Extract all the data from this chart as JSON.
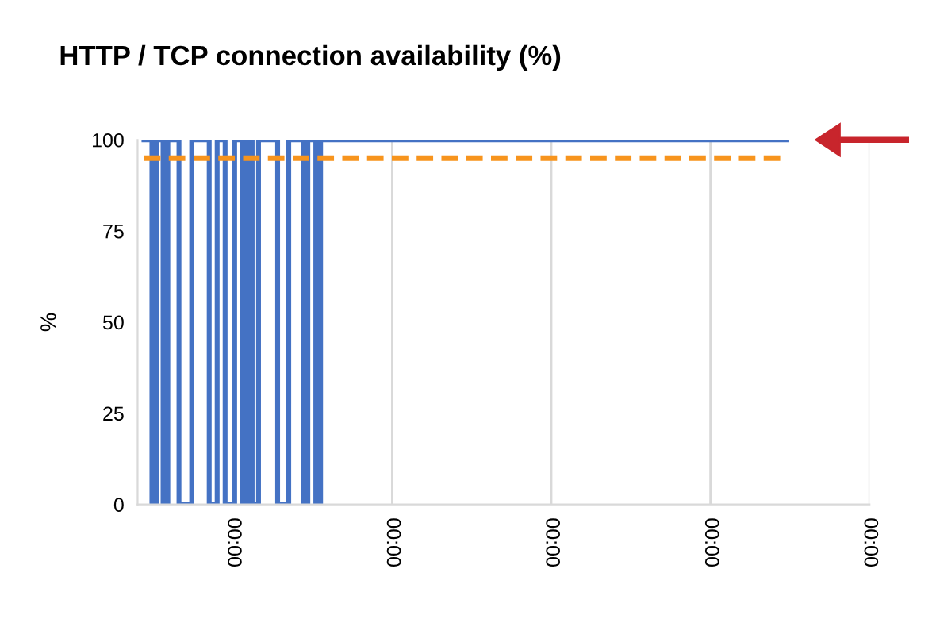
{
  "chart_data": {
    "type": "line",
    "title": "HTTP / TCP connection availability (%)",
    "ylabel": "%",
    "series": [
      {
        "color": "#4472c4",
        "x": [
          0.44,
          0.49,
          0.49,
          0.52,
          0.52,
          0.56,
          0.56,
          0.59,
          0.59,
          0.66,
          0.66,
          0.74,
          0.74,
          0.85,
          0.85,
          0.9,
          0.9,
          0.95,
          0.95,
          1.01,
          1.01,
          1.06,
          1.06,
          1.09,
          1.09,
          1.12,
          1.12,
          1.16,
          1.16,
          1.28,
          1.28,
          1.35,
          1.35,
          1.44,
          1.44,
          1.47,
          1.47,
          1.52,
          1.52,
          1.55,
          1.55,
          4.48
        ],
        "values": [
          100,
          100,
          0,
          0,
          100,
          100,
          0,
          0,
          100,
          100,
          0,
          0,
          100,
          100,
          0,
          0,
          100,
          100,
          0,
          0,
          100,
          100,
          0,
          0,
          100,
          100,
          0,
          0,
          100,
          100,
          0,
          0,
          100,
          100,
          0,
          0,
          100,
          100,
          0,
          0,
          100,
          100
        ]
      },
      {
        "color": "#f7941d",
        "x": [
          0.44,
          4.48
        ],
        "values": [
          95,
          95
        ],
        "line_style": "dashed"
      }
    ],
    "xlim": [
      0.4,
      5
    ],
    "xticks": [
      {
        "value": 1,
        "label": "00:00"
      },
      {
        "value": 2,
        "label": "00:00"
      },
      {
        "value": 3,
        "label": "00:00"
      },
      {
        "value": 4,
        "label": "00:00"
      },
      {
        "value": 5,
        "label": "00:00"
      }
    ],
    "ylim": [
      0,
      100
    ],
    "yticks": [
      0,
      25,
      50,
      75,
      100
    ],
    "grid": "x"
  }
}
